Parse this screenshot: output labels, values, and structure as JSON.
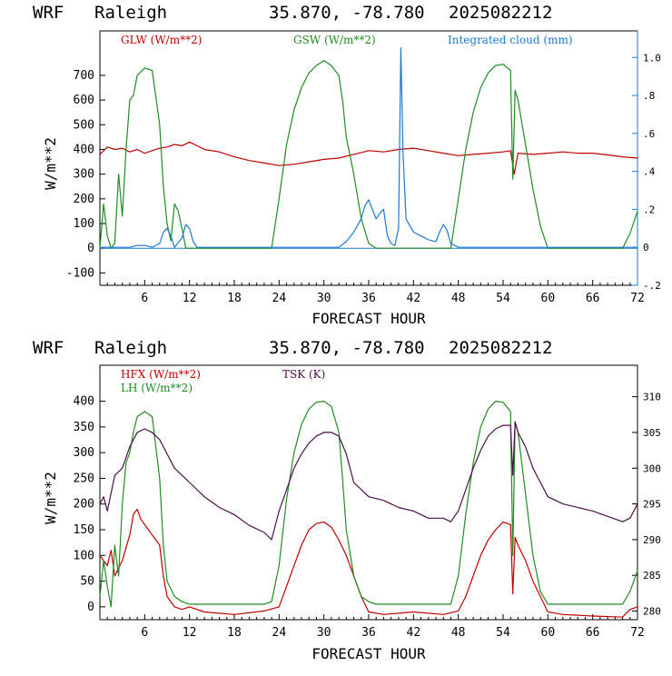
{
  "chart_data": [
    {
      "type": "line",
      "header": {
        "model": "WRF",
        "location": "Raleigh",
        "coords": "35.870, -78.780",
        "init": "2025082212"
      },
      "xlabel": "FORECAST HOUR",
      "ylabel": "W/m**2",
      "xlim": [
        0,
        72
      ],
      "ylim": [
        -150,
        880
      ],
      "xticks": [
        6,
        12,
        18,
        24,
        30,
        36,
        42,
        48,
        54,
        60,
        66,
        72
      ],
      "yticks": [
        -100,
        0,
        100,
        200,
        300,
        400,
        500,
        600,
        700
      ],
      "y2lim": [
        -0.2,
        1.14
      ],
      "y2ticks": [
        "-.2",
        "0",
        ".2",
        ".4",
        ".6",
        ".8",
        "1.0"
      ],
      "y2tick_values": [
        -0.2,
        0,
        0.2,
        0.4,
        0.6,
        0.8,
        1.0
      ],
      "legend": [
        "GLW (W/m**2)",
        "GSW (W/m**2)",
        "Integrated cloud (mm)"
      ],
      "colors": {
        "GLW": "#c00000",
        "GSW": "#228b22",
        "cloud": "#1e78d2",
        "zero": "#1e78d2"
      },
      "series": [
        {
          "name": "GLW (W/m**2)",
          "axis": "left",
          "x": [
            0,
            1,
            2,
            3,
            4,
            5,
            6,
            7,
            8,
            9,
            10,
            11,
            12,
            13,
            14,
            16,
            18,
            20,
            22,
            24,
            26,
            28,
            30,
            32,
            34,
            36,
            38,
            40,
            42,
            44,
            46,
            48,
            50,
            52,
            54,
            55,
            55.5,
            56,
            58,
            60,
            62,
            64,
            66,
            68,
            70,
            72
          ],
          "y": [
            380,
            410,
            400,
            405,
            390,
            400,
            385,
            395,
            405,
            410,
            420,
            415,
            430,
            415,
            400,
            390,
            370,
            355,
            345,
            335,
            340,
            350,
            360,
            365,
            380,
            395,
            390,
            400,
            405,
            395,
            385,
            375,
            380,
            385,
            390,
            395,
            300,
            385,
            380,
            385,
            390,
            385,
            385,
            378,
            370,
            365
          ]
        },
        {
          "name": "GSW (W/m**2)",
          "axis": "left",
          "x": [
            0,
            0.5,
            1,
            1.5,
            2,
            2.5,
            3,
            3.5,
            4,
            4.5,
            5,
            6,
            7,
            8,
            8.5,
            9,
            9.5,
            10,
            10.5,
            11,
            11.5,
            12,
            13,
            22,
            23,
            24,
            25,
            26,
            27,
            28,
            29,
            30,
            31,
            32,
            32.5,
            33,
            34,
            35,
            36,
            37,
            47,
            48,
            49,
            50,
            51,
            52,
            53,
            54,
            55,
            55.3,
            55.6,
            56,
            57,
            58,
            59,
            60,
            70,
            71,
            72
          ],
          "y": [
            0,
            180,
            50,
            0,
            20,
            300,
            130,
            400,
            600,
            620,
            700,
            730,
            720,
            500,
            250,
            100,
            30,
            180,
            150,
            80,
            0,
            0,
            0,
            0,
            0,
            200,
            420,
            560,
            650,
            710,
            740,
            760,
            740,
            700,
            600,
            450,
            300,
            120,
            20,
            0,
            0,
            200,
            400,
            550,
            650,
            710,
            740,
            745,
            720,
            280,
            640,
            600,
            420,
            240,
            90,
            0,
            0,
            60,
            150
          ]
        },
        {
          "name": "Integrated cloud (mm)",
          "axis": "right",
          "x": [
            0,
            4,
            5,
            6,
            7,
            8,
            8.5,
            9,
            9.5,
            10,
            11,
            11.5,
            12,
            12.5,
            13,
            24,
            32,
            33,
            34,
            35,
            35.5,
            36,
            36.5,
            37,
            37.5,
            38,
            38.5,
            39,
            39.5,
            40,
            40.3,
            40.6,
            41,
            42,
            43,
            44,
            45,
            45.5,
            46,
            46.5,
            47,
            48,
            72
          ],
          "y": [
            0,
            0,
            0.01,
            0.01,
            0,
            0.02,
            0.08,
            0.1,
            0.06,
            0,
            0.05,
            0.12,
            0.1,
            0.03,
            0,
            0,
            0,
            0.03,
            0.08,
            0.15,
            0.22,
            0.25,
            0.2,
            0.15,
            0.18,
            0.2,
            0.06,
            0.02,
            0.01,
            0.1,
            1.05,
            0.5,
            0.15,
            0.08,
            0.06,
            0.04,
            0.03,
            0.08,
            0.12,
            0.09,
            0.02,
            0,
            0
          ]
        }
      ]
    },
    {
      "type": "line",
      "header": {
        "model": "WRF",
        "location": "Raleigh",
        "coords": "35.870, -78.780",
        "init": "2025082212"
      },
      "xlabel": "FORECAST HOUR",
      "ylabel": "W/m**2",
      "xlim": [
        0,
        72
      ],
      "ylim": [
        -25,
        470
      ],
      "xticks": [
        6,
        12,
        18,
        24,
        30,
        36,
        42,
        48,
        54,
        60,
        66,
        72
      ],
      "yticks": [
        0,
        50,
        100,
        150,
        200,
        250,
        300,
        350,
        400
      ],
      "y2lim": [
        278.8,
        314.4
      ],
      "y2ticks": [
        "280",
        "285",
        "290",
        "295",
        "300",
        "305",
        "310"
      ],
      "y2tick_values": [
        280,
        285,
        290,
        295,
        300,
        305,
        310
      ],
      "legend": [
        "HFX (W/m**2)",
        "LH  (W/m**2)",
        "TSK (K)"
      ],
      "colors": {
        "HFX": "#c00000",
        "LH": "#228b22",
        "TSK": "#4b0f4b"
      },
      "series": [
        {
          "name": "HFX (W/m**2)",
          "axis": "left",
          "x": [
            0,
            1,
            1.5,
            2,
            3,
            4,
            4.5,
            5,
            5.5,
            6,
            7,
            8,
            8.5,
            9,
            10,
            11,
            12,
            14,
            18,
            22,
            24,
            25,
            26,
            27,
            28,
            29,
            30,
            31,
            32,
            33,
            34,
            35,
            36,
            38,
            42,
            46,
            48,
            49,
            50,
            51,
            52,
            53,
            54,
            55,
            55.3,
            55.6,
            56,
            57,
            58,
            59,
            60,
            62,
            66,
            70,
            71,
            72
          ],
          "y": [
            100,
            80,
            110,
            60,
            90,
            140,
            180,
            190,
            170,
            160,
            140,
            120,
            60,
            20,
            0,
            -5,
            0,
            -10,
            -15,
            -8,
            0,
            40,
            80,
            120,
            150,
            162,
            165,
            155,
            130,
            100,
            60,
            20,
            -10,
            -15,
            -10,
            -15,
            -8,
            20,
            60,
            100,
            130,
            150,
            165,
            160,
            25,
            135,
            120,
            90,
            50,
            20,
            -10,
            -15,
            -18,
            -20,
            -5,
            0
          ]
        },
        {
          "name": "LH  (W/m**2)",
          "axis": "left",
          "x": [
            0,
            0.5,
            1,
            1.5,
            2,
            2.5,
            3,
            3.5,
            4,
            4.5,
            5,
            6,
            7,
            8,
            8.5,
            9,
            10,
            11,
            12,
            22,
            23,
            24,
            25,
            26,
            27,
            28,
            29,
            30,
            31,
            32,
            32.5,
            33,
            34,
            35,
            36,
            37,
            47,
            48,
            49,
            50,
            51,
            52,
            53,
            54,
            55,
            55.3,
            55.6,
            56,
            57,
            58,
            59,
            60,
            70,
            71,
            72
          ],
          "y": [
            20,
            90,
            40,
            0,
            120,
            60,
            200,
            280,
            300,
            340,
            370,
            380,
            370,
            250,
            120,
            50,
            20,
            10,
            5,
            5,
            10,
            80,
            210,
            300,
            355,
            385,
            398,
            400,
            390,
            340,
            250,
            150,
            60,
            20,
            10,
            5,
            5,
            60,
            180,
            280,
            350,
            385,
            400,
            398,
            380,
            100,
            360,
            340,
            220,
            100,
            30,
            5,
            5,
            30,
            70
          ]
        },
        {
          "name": "TSK (K)",
          "axis": "right",
          "x": [
            0,
            0.5,
            1,
            2,
            3,
            4,
            5,
            6,
            7,
            8,
            9,
            10,
            11,
            12,
            14,
            16,
            18,
            20,
            22,
            23,
            24,
            25,
            26,
            27,
            28,
            29,
            30,
            31,
            32,
            33,
            34,
            36,
            38,
            40,
            42,
            44,
            46,
            47,
            48,
            49,
            50,
            51,
            52,
            53,
            54,
            55,
            55.3,
            55.6,
            56,
            57,
            58,
            59,
            60,
            62,
            66,
            70,
            71,
            72
          ],
          "y": [
            295,
            296,
            294,
            299,
            300,
            303,
            305,
            305.5,
            305,
            304,
            302,
            300,
            299,
            298,
            296,
            294.5,
            293.5,
            292,
            291,
            290,
            294,
            297,
            300,
            302,
            303.5,
            304.5,
            305,
            305,
            304.5,
            302,
            298,
            296,
            295.5,
            294.5,
            294,
            293,
            293,
            292.5,
            294,
            297,
            300,
            302.5,
            304.5,
            305.5,
            306,
            306,
            299,
            306.5,
            305,
            303,
            300,
            298,
            296,
            295,
            294,
            292.5,
            293,
            295
          ]
        }
      ]
    }
  ]
}
